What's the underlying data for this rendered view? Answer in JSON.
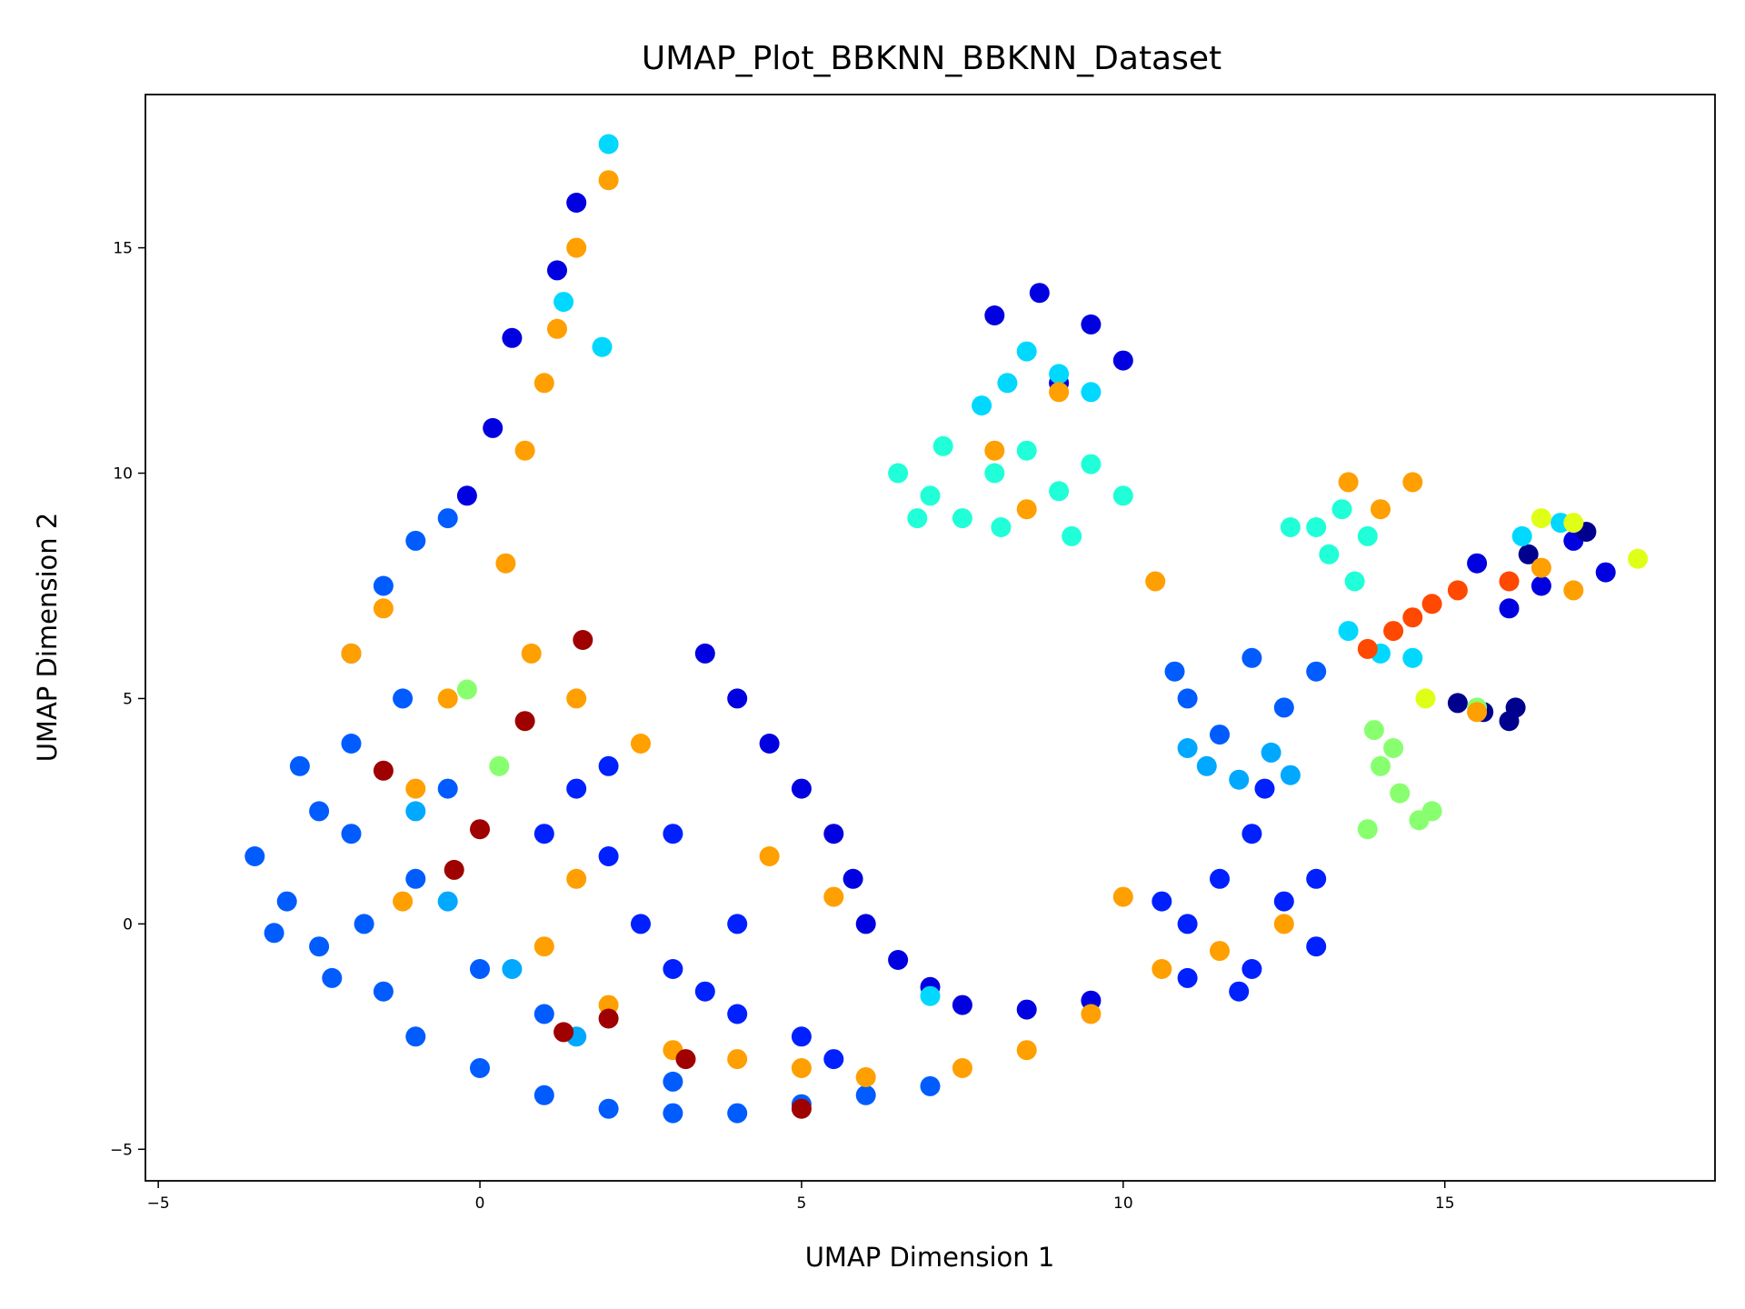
{
  "chart_data": {
    "type": "scatter",
    "title": "UMAP_Plot_BBKNN_BBKNN_Dataset",
    "xlabel": "UMAP Dimension 1",
    "ylabel": "UMAP Dimension 2",
    "xlim": [
      -5.2,
      19.2
    ],
    "ylim": [
      -5.7,
      18.4
    ],
    "x_ticks": [
      -5,
      0,
      5,
      10,
      15
    ],
    "y_ticks": [
      -5,
      0,
      5,
      10,
      15
    ],
    "x_tick_labels": [
      "−5",
      "0",
      "5",
      "10",
      "15"
    ],
    "y_tick_labels": [
      "−5",
      "0",
      "5",
      "10",
      "15"
    ],
    "grid": false,
    "legend": "none",
    "colormap": "jet",
    "colors": {
      "navy": "#00008f",
      "deep_blue": "#0000e0",
      "blue": "#0020ff",
      "mid_blue": "#005cff",
      "sky_blue": "#00a8ff",
      "cyan": "#00d8ff",
      "aquamarine": "#20ffd8",
      "light_green": "#88ff6f",
      "yellow": "#e0ff17",
      "orange": "#ff9f00",
      "red_orange": "#ff4800",
      "dark_red": "#9f0000"
    },
    "clusters": [
      {
        "color": "mid_blue",
        "points": [
          [
            -3.5,
            1.5
          ],
          [
            -3,
            0.5
          ],
          [
            -2.5,
            -0.5
          ],
          [
            -2.5,
            2.5
          ],
          [
            -2,
            4
          ],
          [
            -2,
            6
          ],
          [
            -1.5,
            7.5
          ],
          [
            -1,
            8.5
          ],
          [
            -0.5,
            9
          ],
          [
            -2.8,
            3.5
          ],
          [
            -3.2,
            -0.2
          ],
          [
            -1.5,
            -1.5
          ],
          [
            -1,
            -2.5
          ],
          [
            0,
            -3.2
          ],
          [
            1,
            -3.8
          ],
          [
            2,
            -4.1
          ],
          [
            3,
            -4.2
          ],
          [
            4,
            -4.2
          ],
          [
            5,
            -4.0
          ],
          [
            6,
            -3.8
          ],
          [
            7,
            -3.6
          ],
          [
            -2,
            2
          ],
          [
            -1,
            1
          ],
          [
            -0.5,
            3
          ],
          [
            -1.2,
            5
          ],
          [
            -2.3,
            -1.2
          ],
          [
            -1.8,
            0
          ],
          [
            0,
            -1
          ],
          [
            1,
            -2
          ],
          [
            3,
            -3.5
          ],
          [
            11,
            5
          ],
          [
            11.5,
            4.2
          ],
          [
            12.5,
            4.8
          ],
          [
            10.8,
            5.6
          ],
          [
            13,
            5.6
          ],
          [
            12,
            5.9
          ]
        ]
      },
      {
        "color": "blue",
        "points": [
          [
            1.5,
            3
          ],
          [
            2,
            1.5
          ],
          [
            2.5,
            0
          ],
          [
            3,
            -1
          ],
          [
            4,
            -2
          ],
          [
            5,
            -2.5
          ],
          [
            5.5,
            -3
          ],
          [
            1,
            2
          ],
          [
            2,
            3.5
          ],
          [
            3,
            2
          ],
          [
            4,
            0
          ],
          [
            3.5,
            -1.5
          ],
          [
            11,
            0
          ],
          [
            11.5,
            1
          ],
          [
            12,
            -1
          ],
          [
            12.5,
            0.5
          ],
          [
            11,
            -1.2
          ],
          [
            12,
            2
          ],
          [
            13,
            1
          ],
          [
            13,
            -0.5
          ],
          [
            11.8,
            -1.5
          ],
          [
            10.6,
            0.5
          ],
          [
            12.2,
            3
          ]
        ]
      },
      {
        "color": "deep_blue",
        "points": [
          [
            3.5,
            6
          ],
          [
            4,
            5
          ],
          [
            4.5,
            4
          ],
          [
            5,
            3
          ],
          [
            5.5,
            2
          ],
          [
            5.8,
            1
          ],
          [
            6,
            0
          ],
          [
            6.5,
            -0.8
          ],
          [
            7,
            -1.4
          ],
          [
            7.5,
            -1.8
          ],
          [
            8.5,
            -1.9
          ],
          [
            9.5,
            -1.7
          ],
          [
            1.5,
            16
          ],
          [
            1.2,
            14.5
          ],
          [
            0.5,
            13
          ],
          [
            0.2,
            11
          ],
          [
            -0.2,
            9.5
          ],
          [
            8,
            13.5
          ],
          [
            8.7,
            14
          ],
          [
            9.5,
            13.3
          ],
          [
            10,
            12.5
          ],
          [
            9,
            12
          ],
          [
            15.5,
            8
          ],
          [
            16.5,
            7.5
          ],
          [
            17,
            8.5
          ],
          [
            17.5,
            7.8
          ],
          [
            16,
            7
          ]
        ]
      },
      {
        "color": "navy",
        "points": [
          [
            15.2,
            4.9
          ],
          [
            15.6,
            4.7
          ],
          [
            16,
            4.5
          ],
          [
            16.1,
            4.8
          ],
          [
            17.2,
            8.7
          ],
          [
            16.3,
            8.2
          ]
        ]
      },
      {
        "color": "sky_blue",
        "points": [
          [
            11.3,
            3.5
          ],
          [
            11.8,
            3.2
          ],
          [
            12.3,
            3.8
          ],
          [
            11,
            3.9
          ],
          [
            1.5,
            -2.5
          ],
          [
            0.5,
            -1
          ],
          [
            -0.5,
            0.5
          ],
          [
            -1,
            2.5
          ],
          [
            12.6,
            3.3
          ]
        ]
      },
      {
        "color": "cyan",
        "points": [
          [
            8.5,
            12.7
          ],
          [
            9,
            12.2
          ],
          [
            9.5,
            11.8
          ],
          [
            7.8,
            11.5
          ],
          [
            8.2,
            12
          ],
          [
            1.3,
            13.8
          ],
          [
            1.9,
            12.8
          ],
          [
            2,
            17.3
          ],
          [
            13.5,
            6.5
          ],
          [
            14,
            6
          ],
          [
            14.5,
            5.9
          ],
          [
            16.8,
            8.9
          ],
          [
            16.2,
            8.6
          ],
          [
            7,
            -1.6
          ]
        ]
      },
      {
        "color": "aquamarine",
        "points": [
          [
            6.5,
            10
          ],
          [
            7,
            9.5
          ],
          [
            7.5,
            9
          ],
          [
            8,
            10
          ],
          [
            8.5,
            10.5
          ],
          [
            9,
            9.6
          ],
          [
            9.5,
            10.2
          ],
          [
            10,
            9.5
          ],
          [
            7.2,
            10.6
          ],
          [
            8.1,
            8.8
          ],
          [
            6.8,
            9
          ],
          [
            9.2,
            8.6
          ],
          [
            13,
            8.8
          ],
          [
            13.4,
            9.2
          ],
          [
            13.8,
            8.6
          ],
          [
            13.2,
            8.2
          ],
          [
            13.6,
            7.6
          ],
          [
            12.6,
            8.8
          ]
        ]
      },
      {
        "color": "light_green",
        "points": [
          [
            14,
            3.5
          ],
          [
            14.3,
            2.9
          ],
          [
            14.6,
            2.3
          ],
          [
            13.8,
            2.1
          ],
          [
            14.2,
            3.9
          ],
          [
            13.9,
            4.3
          ],
          [
            15.5,
            4.8
          ],
          [
            0.3,
            3.5
          ],
          [
            -0.2,
            5.2
          ],
          [
            14.8,
            2.5
          ]
        ]
      },
      {
        "color": "yellow",
        "points": [
          [
            14.7,
            5.0
          ],
          [
            16.5,
            9.0
          ],
          [
            17.0,
            8.9
          ],
          [
            18.0,
            8.1
          ]
        ]
      },
      {
        "color": "orange",
        "points": [
          [
            1,
            12
          ],
          [
            0.7,
            10.5
          ],
          [
            0.4,
            8
          ],
          [
            0.8,
            6
          ],
          [
            1.5,
            5
          ],
          [
            2.5,
            4
          ],
          [
            1.5,
            1
          ],
          [
            1,
            -0.5
          ],
          [
            2,
            -1.8
          ],
          [
            3,
            -2.8
          ],
          [
            4,
            -3
          ],
          [
            5,
            -3.2
          ],
          [
            6,
            -3.4
          ],
          [
            7.5,
            -3.2
          ],
          [
            8.5,
            -2.8
          ],
          [
            9.5,
            -2
          ],
          [
            10,
            0.6
          ],
          [
            10.6,
            -1
          ],
          [
            11.5,
            -0.6
          ],
          [
            12.5,
            0
          ],
          [
            8,
            10.5
          ],
          [
            8.5,
            9.2
          ],
          [
            9,
            11.8
          ],
          [
            10.5,
            7.6
          ],
          [
            13.5,
            9.8
          ],
          [
            14,
            9.2
          ],
          [
            14.5,
            9.8
          ],
          [
            15.5,
            4.7
          ],
          [
            17,
            7.4
          ],
          [
            16.5,
            7.9
          ],
          [
            -1.5,
            7
          ],
          [
            -2,
            6
          ],
          [
            -0.5,
            5
          ],
          [
            -1,
            3
          ],
          [
            -1.2,
            0.5
          ],
          [
            1.5,
            15
          ],
          [
            2,
            16.5
          ],
          [
            1.2,
            13.2
          ],
          [
            4.5,
            1.5
          ],
          [
            5.5,
            0.6
          ]
        ]
      },
      {
        "color": "red_orange",
        "points": [
          [
            14.2,
            6.5
          ],
          [
            14.5,
            6.8
          ],
          [
            14.8,
            7.1
          ],
          [
            15.2,
            7.4
          ],
          [
            16,
            7.6
          ],
          [
            13.8,
            6.1
          ]
        ]
      },
      {
        "color": "dark_red",
        "points": [
          [
            -1.5,
            3.4
          ],
          [
            -0.4,
            1.2
          ],
          [
            0,
            2.1
          ],
          [
            1.3,
            -2.4
          ],
          [
            2,
            -2.1
          ],
          [
            5,
            -4.1
          ],
          [
            3.2,
            -3
          ],
          [
            1.6,
            6.3
          ],
          [
            0.7,
            4.5
          ]
        ]
      }
    ]
  }
}
